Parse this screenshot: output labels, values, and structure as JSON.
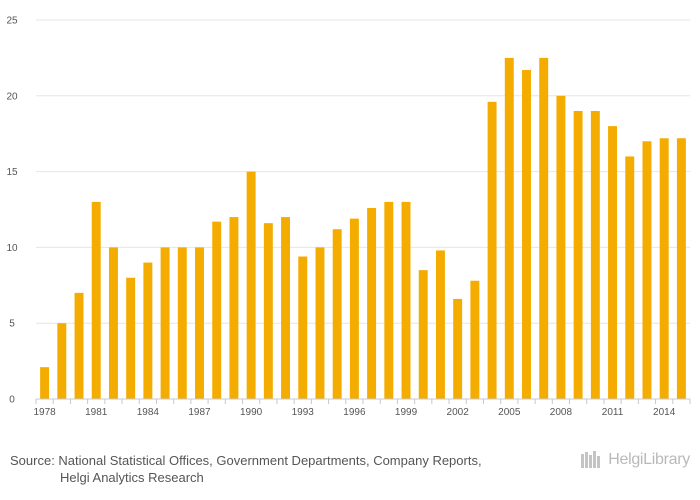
{
  "chart_data": {
    "type": "bar",
    "title": "",
    "xlabel": "",
    "ylabel": "",
    "ylim": [
      0,
      25
    ],
    "yticks": [
      0,
      5,
      10,
      15,
      20,
      25
    ],
    "xtick_labels": [
      "1978",
      "1981",
      "1984",
      "1987",
      "1990",
      "1993",
      "1996",
      "1999",
      "2002",
      "2005",
      "2008",
      "2011",
      "2014"
    ],
    "grid": true,
    "bar_color": "#F5AC00",
    "categories": [
      "1978",
      "1979",
      "1980",
      "1981",
      "1982",
      "1983",
      "1984",
      "1985",
      "1986",
      "1987",
      "1988",
      "1989",
      "1990",
      "1991",
      "1992",
      "1993",
      "1994",
      "1995",
      "1996",
      "1997",
      "1998",
      "1999",
      "2000",
      "2001",
      "2002",
      "2003",
      "2004",
      "2005",
      "2006",
      "2007",
      "2008",
      "2009",
      "2010",
      "2011",
      "2012",
      "2013",
      "2014",
      "2015"
    ],
    "values": [
      2.1,
      5.0,
      7.0,
      13.0,
      10.0,
      8.0,
      9.0,
      10.0,
      10.0,
      10.0,
      11.7,
      12.0,
      15.0,
      11.6,
      12.0,
      9.4,
      10.0,
      11.2,
      11.9,
      12.6,
      13.0,
      13.0,
      8.5,
      9.8,
      6.6,
      7.8,
      19.6,
      22.5,
      21.7,
      22.5,
      20.0,
      19.0,
      19.0,
      18.0,
      16.0,
      17.0,
      17.2,
      17.2
    ]
  },
  "footer": {
    "source_line1": "Source: National Statistical Offices, Government Departments, Company Reports,",
    "source_line2": "Helgi Analytics Research"
  },
  "logo": {
    "text": "HelgiLibrary"
  }
}
